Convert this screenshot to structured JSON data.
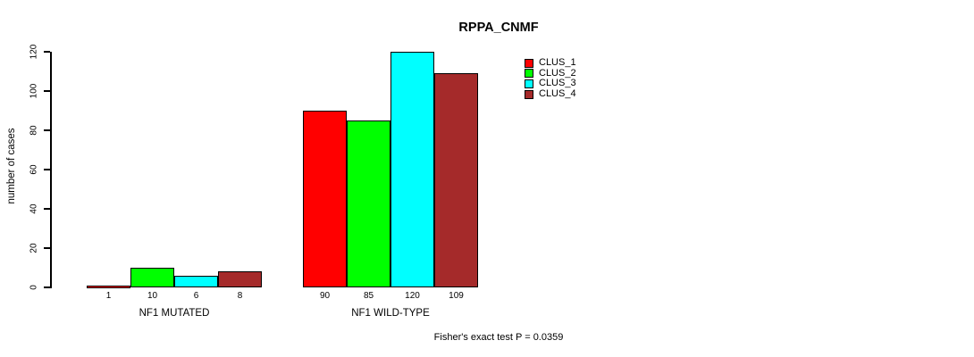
{
  "chart_data": {
    "type": "bar",
    "title": "RPPA_CNMF",
    "ylabel": "number of cases",
    "ylim": [
      0,
      120
    ],
    "yticks": [
      0,
      20,
      40,
      60,
      80,
      100,
      120
    ],
    "categories": [
      "NF1 MUTATED",
      "NF1 WILD-TYPE"
    ],
    "series": [
      {
        "name": "CLUS_1",
        "color": "#FF0000",
        "values": [
          1,
          90
        ]
      },
      {
        "name": "CLUS_2",
        "color": "#00FF00",
        "values": [
          10,
          85
        ]
      },
      {
        "name": "CLUS_3",
        "color": "#00FFFF",
        "values": [
          6,
          120
        ]
      },
      {
        "name": "CLUS_4",
        "color": "#A52A2A",
        "values": [
          8,
          109
        ]
      }
    ],
    "legend_position": "right",
    "grid": false,
    "footnote": "Fisher's exact test P = 0.0359",
    "background": "#FFFFFF"
  }
}
